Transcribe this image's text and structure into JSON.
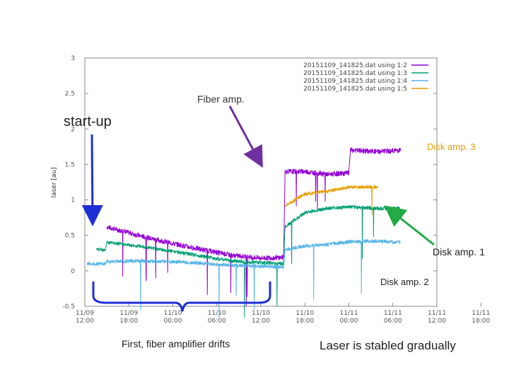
{
  "chart_data": {
    "type": "line",
    "ylabel": "laser [au]",
    "ylim": [
      -0.5,
      3
    ],
    "yticks": [
      "-0.5",
      "0",
      "0.5",
      "1",
      "1.5",
      "2",
      "2.5",
      "3"
    ],
    "xlim_hours": [
      0,
      48
    ],
    "xtick_labels": [
      [
        "11/09",
        "12:00"
      ],
      [
        "11/09",
        "18:00"
      ],
      [
        "11/10",
        "00:00"
      ],
      [
        "11/10",
        "06:00"
      ],
      [
        "11/10",
        "12:00"
      ],
      [
        "11/10",
        "18:00"
      ],
      [
        "11/11",
        "00:00"
      ],
      [
        "11/11",
        "06:00"
      ],
      [
        "11/11",
        "12:00"
      ],
      [
        "11/11",
        "18:00"
      ]
    ],
    "legend": [
      {
        "label": "20151109_141825.dat using 1:2",
        "color": "#9400d3"
      },
      {
        "label": "20151109_141825.dat using 1:3",
        "color": "#009e73"
      },
      {
        "label": "20151109_141825.dat using 1:4",
        "color": "#56b4e9"
      },
      {
        "label": "20151109_141825.dat using 1:5",
        "color": "#e69f00"
      }
    ],
    "legend_position": "top-right",
    "series": [
      {
        "color": "#9400d3",
        "points": [
          [
            3.0,
            0.62
          ],
          [
            8,
            0.48
          ],
          [
            14,
            0.34
          ],
          [
            20,
            0.22
          ],
          [
            24,
            0.18
          ],
          [
            27.1,
            0.19
          ],
          [
            27.3,
            1.4
          ],
          [
            30,
            1.4
          ],
          [
            33,
            1.36
          ],
          [
            36,
            1.38
          ],
          [
            36.2,
            1.7
          ],
          [
            40,
            1.68
          ],
          [
            43,
            1.7
          ],
          [
            43.1,
            1.7
          ]
        ]
      },
      {
        "color": "#009e73",
        "points": [
          [
            1.6,
            0.3
          ],
          [
            2.8,
            0.3
          ],
          [
            3.0,
            0.4
          ],
          [
            8,
            0.34
          ],
          [
            14,
            0.24
          ],
          [
            20,
            0.14
          ],
          [
            27.1,
            0.1
          ],
          [
            27.3,
            0.62
          ],
          [
            30,
            0.82
          ],
          [
            33,
            0.88
          ],
          [
            36,
            0.9
          ],
          [
            40,
            0.88
          ],
          [
            43,
            0.88
          ]
        ]
      },
      {
        "color": "#56b4e9",
        "points": [
          [
            0.3,
            0.1
          ],
          [
            2.8,
            0.1
          ],
          [
            3.0,
            0.13
          ],
          [
            8,
            0.14
          ],
          [
            14,
            0.12
          ],
          [
            20,
            0.08
          ],
          [
            27.1,
            0.05
          ],
          [
            27.3,
            0.3
          ],
          [
            30,
            0.35
          ],
          [
            33,
            0.37
          ],
          [
            36,
            0.41
          ],
          [
            40,
            0.42
          ],
          [
            43,
            0.4
          ]
        ]
      },
      {
        "color": "#e69f00",
        "points": [
          [
            27.3,
            0.92
          ],
          [
            30,
            1.08
          ],
          [
            33,
            1.12
          ],
          [
            36,
            1.18
          ],
          [
            40,
            1.18
          ]
        ]
      }
    ],
    "annotations": [
      {
        "id": "fiber",
        "text": "Fiber amp."
      },
      {
        "id": "startup",
        "text": "start-up"
      },
      {
        "id": "disk3",
        "text": "Disk amp. 3"
      },
      {
        "id": "disk1",
        "text": "Disk amp. 1"
      },
      {
        "id": "disk2",
        "text": "Disk amp. 2"
      },
      {
        "id": "fiberdrift",
        "text": "First, fiber amplifier drifts"
      },
      {
        "id": "stabled",
        "text": "Laser is stabled gradually"
      }
    ],
    "arrow_colors": {
      "fiber": "#7030a0",
      "startup": "#1f2fd6",
      "disk1": "#22aa44",
      "brace": "#1f2fd6"
    }
  }
}
